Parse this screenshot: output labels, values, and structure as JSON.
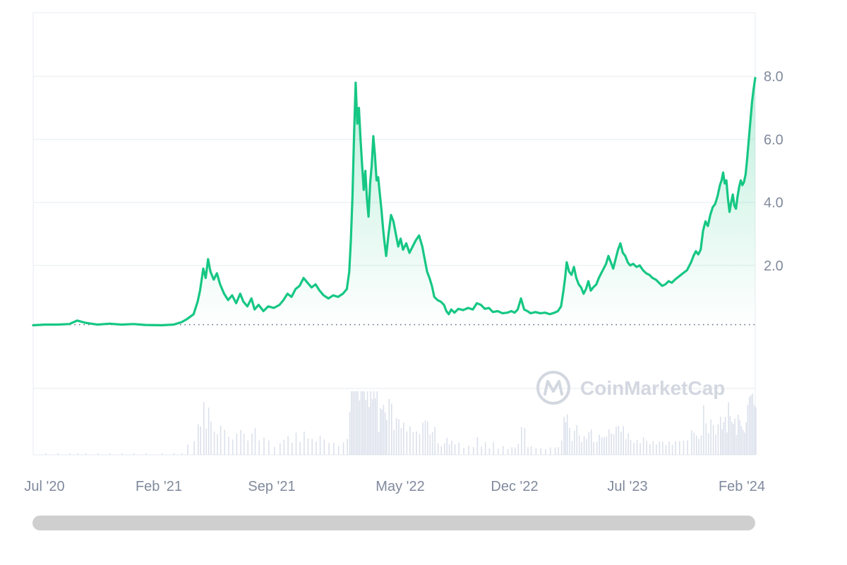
{
  "brand": {
    "watermark": "CoinMarketCap"
  },
  "colors": {
    "line": "#16c784",
    "area_top": "#16c784",
    "grid": "#eff2f5",
    "axis_text": "#808a9d",
    "baseline": "#58667e",
    "volume": "#cfd6e4",
    "scrollbar": "#cfcfcf",
    "watermark": "#d3d7e0"
  },
  "chart_data": {
    "type": "area",
    "title": "",
    "xlabel": "",
    "ylabel": "",
    "x_axis_labels": [
      "Jul '20",
      "Feb '21",
      "Sep '21",
      "May '22",
      "Dec '22",
      "Jul '23",
      "Feb '24"
    ],
    "y_axis_labels": [
      "8.0",
      "6.0",
      "4.0",
      "2.0"
    ],
    "y_ticks": [
      8.0,
      6.0,
      4.0,
      2.0
    ],
    "ylim": [
      0,
      10
    ],
    "grid": true,
    "baseline_value": 0.12,
    "baseline_style": "dotted",
    "series": [
      {
        "values": [
          [
            0,
            0.1
          ],
          [
            15,
            0.12
          ],
          [
            30,
            0.12
          ],
          [
            45,
            0.14
          ],
          [
            55,
            0.25
          ],
          [
            65,
            0.18
          ],
          [
            80,
            0.12
          ],
          [
            95,
            0.15
          ],
          [
            110,
            0.12
          ],
          [
            125,
            0.14
          ],
          [
            140,
            0.11
          ],
          [
            160,
            0.1
          ],
          [
            175,
            0.12
          ],
          [
            185,
            0.2
          ],
          [
            192,
            0.3
          ],
          [
            200,
            0.45
          ],
          [
            205,
            0.85
          ],
          [
            208,
            1.2
          ],
          [
            212,
            1.9
          ],
          [
            215,
            1.6
          ],
          [
            218,
            2.2
          ],
          [
            221,
            1.8
          ],
          [
            225,
            1.55
          ],
          [
            229,
            1.75
          ],
          [
            233,
            1.4
          ],
          [
            238,
            1.1
          ],
          [
            243,
            0.9
          ],
          [
            248,
            1.05
          ],
          [
            253,
            0.8
          ],
          [
            258,
            1.1
          ],
          [
            262,
            0.85
          ],
          [
            267,
            0.7
          ],
          [
            272,
            0.95
          ],
          [
            276,
            0.6
          ],
          [
            281,
            0.75
          ],
          [
            287,
            0.55
          ],
          [
            293,
            0.7
          ],
          [
            300,
            0.65
          ],
          [
            307,
            0.75
          ],
          [
            312,
            0.9
          ],
          [
            317,
            1.1
          ],
          [
            322,
            1.0
          ],
          [
            327,
            1.25
          ],
          [
            332,
            1.35
          ],
          [
            337,
            1.6
          ],
          [
            342,
            1.45
          ],
          [
            347,
            1.3
          ],
          [
            352,
            1.4
          ],
          [
            357,
            1.2
          ],
          [
            362,
            1.05
          ],
          [
            368,
            0.95
          ],
          [
            374,
            1.05
          ],
          [
            380,
            1.0
          ],
          [
            386,
            1.1
          ],
          [
            391,
            1.25
          ],
          [
            394,
            1.8
          ],
          [
            396,
            2.8
          ],
          [
            398,
            4.2
          ],
          [
            400,
            6.2
          ],
          [
            402,
            7.8
          ],
          [
            404,
            6.5
          ],
          [
            406,
            7.0
          ],
          [
            408,
            6.0
          ],
          [
            410,
            5.2
          ],
          [
            412,
            4.4
          ],
          [
            414,
            5.0
          ],
          [
            416,
            4.1
          ],
          [
            418,
            3.55
          ],
          [
            420,
            4.6
          ],
          [
            422,
            5.2
          ],
          [
            424,
            6.1
          ],
          [
            426,
            5.5
          ],
          [
            428,
            4.7
          ],
          [
            430,
            4.8
          ],
          [
            432,
            4.3
          ],
          [
            434,
            3.8
          ],
          [
            436,
            3.2
          ],
          [
            438,
            2.7
          ],
          [
            440,
            2.3
          ],
          [
            443,
            3.0
          ],
          [
            446,
            3.6
          ],
          [
            449,
            3.4
          ],
          [
            452,
            3.0
          ],
          [
            455,
            2.6
          ],
          [
            458,
            2.85
          ],
          [
            461,
            2.5
          ],
          [
            465,
            2.7
          ],
          [
            469,
            2.4
          ],
          [
            473,
            2.6
          ],
          [
            477,
            2.8
          ],
          [
            481,
            2.95
          ],
          [
            485,
            2.6
          ],
          [
            488,
            2.2
          ],
          [
            491,
            1.8
          ],
          [
            494,
            1.6
          ],
          [
            497,
            1.35
          ],
          [
            500,
            1.0
          ],
          [
            504,
            0.9
          ],
          [
            508,
            0.85
          ],
          [
            512,
            0.75
          ],
          [
            515,
            0.55
          ],
          [
            518,
            0.45
          ],
          [
            521,
            0.6
          ],
          [
            525,
            0.5
          ],
          [
            530,
            0.62
          ],
          [
            536,
            0.58
          ],
          [
            542,
            0.65
          ],
          [
            548,
            0.6
          ],
          [
            553,
            0.8
          ],
          [
            558,
            0.75
          ],
          [
            563,
            0.62
          ],
          [
            568,
            0.65
          ],
          [
            573,
            0.52
          ],
          [
            579,
            0.55
          ],
          [
            585,
            0.48
          ],
          [
            591,
            0.5
          ],
          [
            596,
            0.55
          ],
          [
            600,
            0.5
          ],
          [
            604,
            0.6
          ],
          [
            608,
            0.95
          ],
          [
            612,
            0.6
          ],
          [
            616,
            0.55
          ],
          [
            620,
            0.48
          ],
          [
            626,
            0.52
          ],
          [
            632,
            0.48
          ],
          [
            638,
            0.5
          ],
          [
            644,
            0.45
          ],
          [
            650,
            0.5
          ],
          [
            654,
            0.55
          ],
          [
            658,
            0.7
          ],
          [
            661,
            1.2
          ],
          [
            663,
            1.6
          ],
          [
            665,
            2.1
          ],
          [
            668,
            1.8
          ],
          [
            671,
            1.7
          ],
          [
            674,
            1.95
          ],
          [
            677,
            1.6
          ],
          [
            680,
            1.4
          ],
          [
            683,
            1.3
          ],
          [
            686,
            1.1
          ],
          [
            689,
            1.25
          ],
          [
            692,
            1.5
          ],
          [
            695,
            1.2
          ],
          [
            698,
            1.3
          ],
          [
            702,
            1.4
          ],
          [
            705,
            1.6
          ],
          [
            708,
            1.75
          ],
          [
            711,
            1.9
          ],
          [
            714,
            2.05
          ],
          [
            717,
            2.3
          ],
          [
            720,
            2.1
          ],
          [
            723,
            1.9
          ],
          [
            726,
            2.2
          ],
          [
            729,
            2.5
          ],
          [
            732,
            2.7
          ],
          [
            735,
            2.4
          ],
          [
            738,
            2.3
          ],
          [
            741,
            2.1
          ],
          [
            744,
            2.0
          ],
          [
            748,
            2.05
          ],
          [
            752,
            1.95
          ],
          [
            756,
            2.0
          ],
          [
            760,
            1.85
          ],
          [
            764,
            1.75
          ],
          [
            768,
            1.7
          ],
          [
            772,
            1.6
          ],
          [
            776,
            1.55
          ],
          [
            780,
            1.45
          ],
          [
            784,
            1.35
          ],
          [
            788,
            1.4
          ],
          [
            792,
            1.5
          ],
          [
            796,
            1.45
          ],
          [
            800,
            1.55
          ],
          [
            805,
            1.65
          ],
          [
            810,
            1.75
          ],
          [
            815,
            1.85
          ],
          [
            820,
            2.1
          ],
          [
            823,
            2.3
          ],
          [
            826,
            2.45
          ],
          [
            829,
            2.35
          ],
          [
            832,
            2.5
          ],
          [
            835,
            3.1
          ],
          [
            838,
            3.4
          ],
          [
            841,
            3.25
          ],
          [
            844,
            3.6
          ],
          [
            847,
            3.85
          ],
          [
            850,
            3.95
          ],
          [
            853,
            4.2
          ],
          [
            856,
            4.55
          ],
          [
            858,
            4.7
          ],
          [
            860,
            4.95
          ],
          [
            862,
            4.6
          ],
          [
            864,
            4.7
          ],
          [
            866,
            4.1
          ],
          [
            868,
            3.7
          ],
          [
            870,
            4.0
          ],
          [
            872,
            4.25
          ],
          [
            874,
            3.9
          ],
          [
            876,
            3.8
          ],
          [
            878,
            4.2
          ],
          [
            880,
            4.5
          ],
          [
            882,
            4.7
          ],
          [
            884,
            4.55
          ],
          [
            886,
            4.65
          ],
          [
            888,
            4.9
          ],
          [
            890,
            5.4
          ],
          [
            892,
            6.0
          ],
          [
            894,
            6.6
          ],
          [
            896,
            7.2
          ],
          [
            898,
            7.6
          ],
          [
            900,
            7.95
          ]
        ]
      }
    ]
  }
}
